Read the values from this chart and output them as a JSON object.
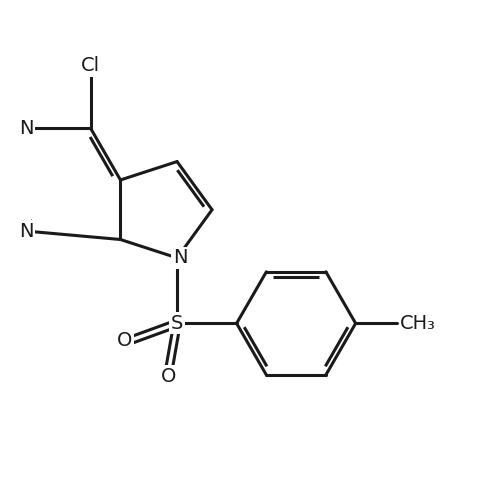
{
  "line_color": "#1a1a1a",
  "line_width": 2.2,
  "font_size": 14,
  "figsize": [
    4.79,
    4.79
  ],
  "dpi": 100,
  "xlim": [
    -1.5,
    5.5
  ],
  "ylim": [
    -4.5,
    3.5
  ]
}
